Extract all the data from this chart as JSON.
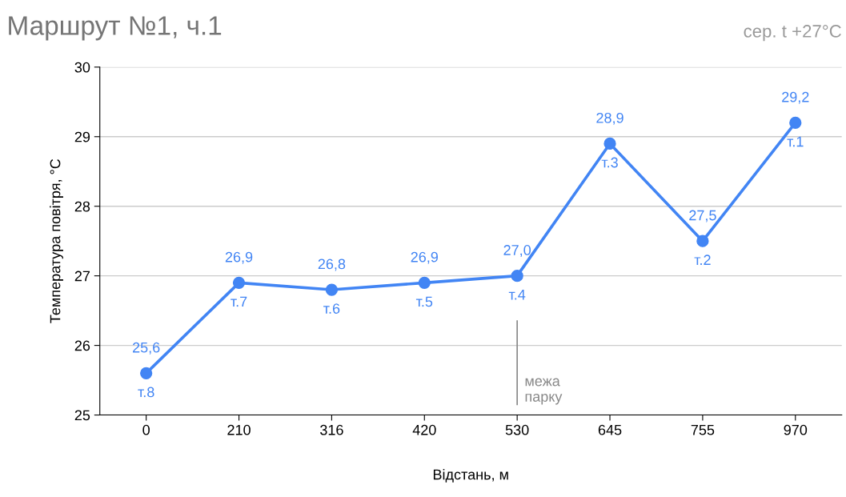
{
  "chart_data": {
    "type": "line",
    "title": "Маршрут №1, ч.1",
    "subtitle": "сер. t +27°C",
    "xlabel": "Відстань, м",
    "ylabel": "Температура повітря, °C",
    "categories": [
      "0",
      "210",
      "316",
      "420",
      "530",
      "645",
      "755",
      "970"
    ],
    "series": [
      {
        "color": "#4285f4",
        "values": [
          25.6,
          26.9,
          26.8,
          26.9,
          27.0,
          28.9,
          27.5,
          29.2
        ],
        "value_labels": [
          "25,6",
          "26,9",
          "26,8",
          "26,9",
          "27,0",
          "28,9",
          "27,5",
          "29,2"
        ]
      }
    ],
    "ylim": [
      25,
      30
    ],
    "yticks": [
      25,
      26,
      27,
      28,
      29,
      30
    ],
    "grid": "y",
    "marker": "circle",
    "line_style": "solid",
    "legend": false,
    "annotations": [
      {
        "text": "т.8",
        "x": "0",
        "y": 25.6
      },
      {
        "text": "т.7",
        "x": "210",
        "y": 26.9
      },
      {
        "text": "т.6",
        "x": "316",
        "y": 26.8
      },
      {
        "text": "т.5",
        "x": "420",
        "y": 26.9
      },
      {
        "text": "т.4",
        "x": "530",
        "y": 27.0
      },
      {
        "text": "т.3",
        "x": "645",
        "y": 28.9
      },
      {
        "text": "т.2",
        "x": "755",
        "y": 27.5
      },
      {
        "text": "т.1",
        "x": "970",
        "y": 29.2
      }
    ],
    "ref_lines": [
      {
        "axis": "x",
        "value": "530",
        "label": "межа\nпарку",
        "color": "#888888"
      }
    ]
  }
}
